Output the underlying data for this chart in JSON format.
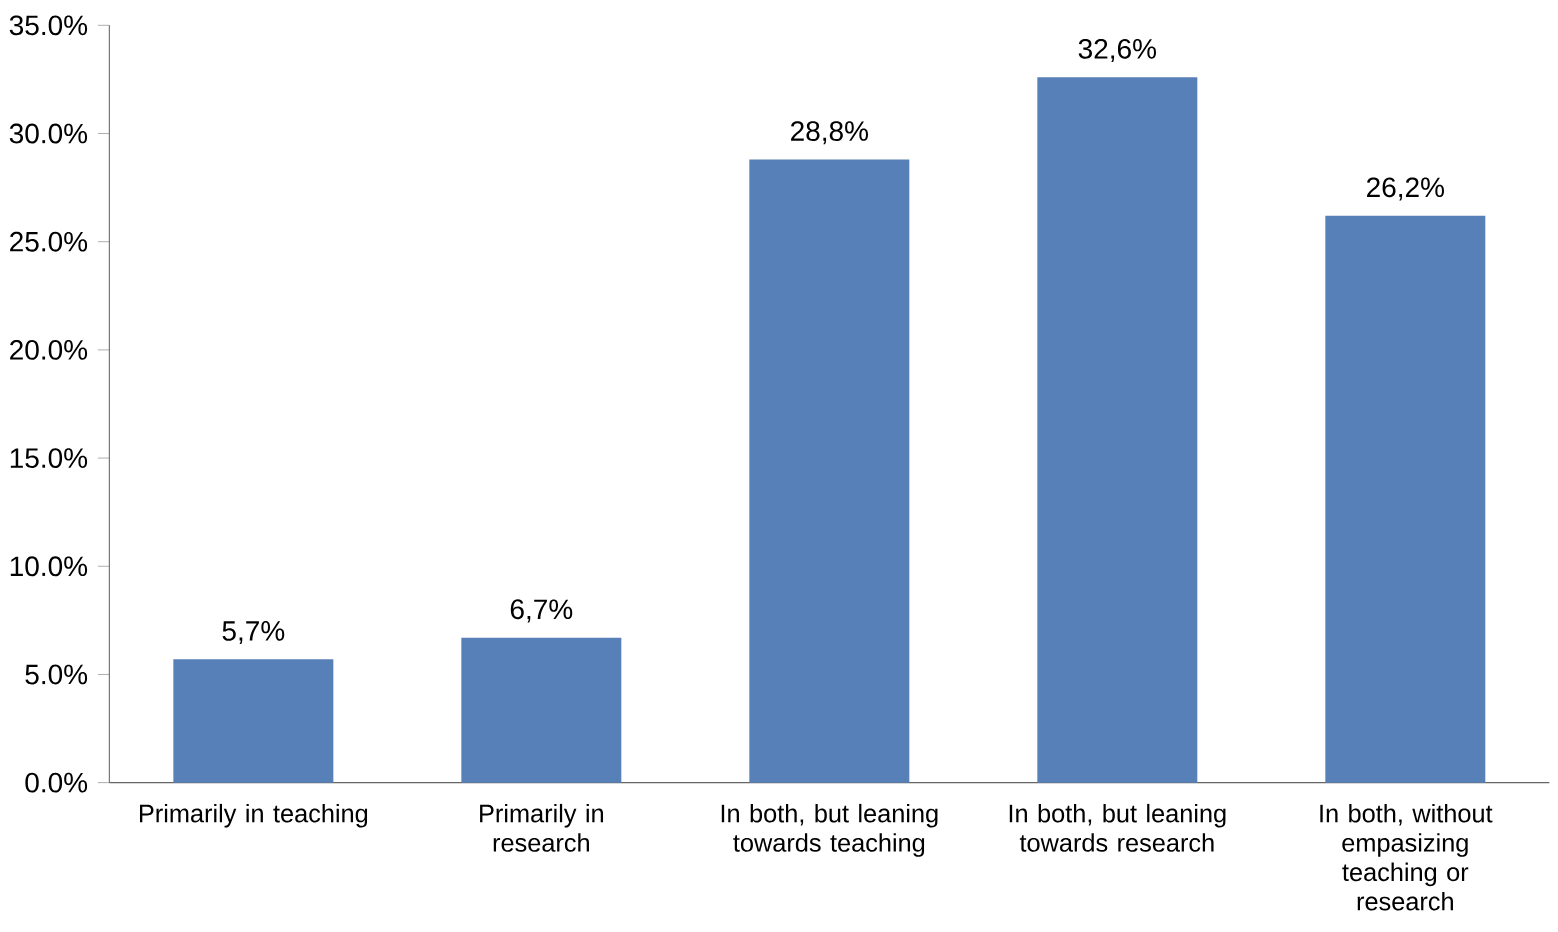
{
  "chart_data": {
    "type": "bar",
    "categories": [
      "Primarily in teaching",
      "Primarily in research",
      "In both, but leaning towards teaching",
      "In both, but leaning towards research",
      "In both, without empasizing teaching or research"
    ],
    "values": [
      5.7,
      6.7,
      28.8,
      32.6,
      26.2
    ],
    "value_labels": [
      "5,7%",
      "6,7%",
      "28,8%",
      "32,6%",
      "26,2%"
    ],
    "color": "#5880b8",
    "ylim": [
      0,
      35
    ],
    "yticks": [
      {
        "value": 0,
        "label": "0.0%"
      },
      {
        "value": 5,
        "label": "5.0%"
      },
      {
        "value": 10,
        "label": "10.0%"
      },
      {
        "value": 15,
        "label": "15.0%"
      },
      {
        "value": 20,
        "label": "20.0%"
      },
      {
        "value": 25,
        "label": "25.0%"
      },
      {
        "value": 30,
        "label": "30.0%"
      },
      {
        "value": 35,
        "label": "35.0%"
      }
    ],
    "grid": false
  }
}
